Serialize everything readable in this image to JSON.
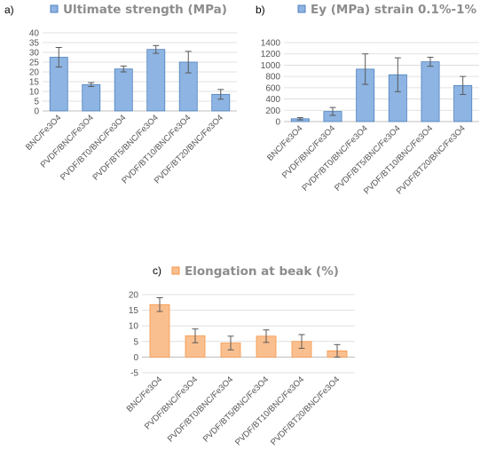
{
  "chart_data": [
    {
      "panel_label": "a)",
      "type": "bar",
      "title": "Ultimate strength (MPa)",
      "legend_position": "top",
      "color_fill": "#8db4e2",
      "color_stroke": "#4f81bd",
      "categories": [
        "BNC/Fe3O4",
        "PVDF/BNC/Fe3O4",
        "PVDF/BT0/BNC/Fe3O4",
        "PVDF/BT5/BNC/Fe3O4",
        "PVDF/BT10/BNC/Fe3O4",
        "PVDF/BT20/BNC/Fe3O4"
      ],
      "values": [
        27.5,
        13.5,
        21.5,
        31.5,
        25,
        8.5
      ],
      "errors": [
        5,
        1,
        1.5,
        2,
        5.5,
        2.5
      ],
      "ylim": [
        0,
        40
      ],
      "yticks": [
        "0",
        "5",
        "10",
        "15",
        "20",
        "25",
        "30",
        "35",
        "40"
      ],
      "grid": true
    },
    {
      "panel_label": "b)",
      "type": "bar",
      "title": "Ey (MPa) strain 0.1%-1%",
      "legend_position": "top",
      "color_fill": "#8db4e2",
      "color_stroke": "#4f81bd",
      "categories": [
        "BNC/Fe3O4",
        "PVDF/BNC/Fe3O4",
        "PVDF/BT0/BNC/Fe3O4",
        "PVDF/BT5/BNC/Fe3O4",
        "PVDF/BT10/BNC/Fe3O4",
        "PVDF/BT20/BNC/Fe3O4"
      ],
      "values": [
        50,
        180,
        930,
        830,
        1060,
        640
      ],
      "errors": [
        20,
        70,
        270,
        300,
        80,
        160
      ],
      "ylim": [
        0,
        1400
      ],
      "yticks": [
        "0",
        "200",
        "400",
        "600",
        "800",
        "1000",
        "1200",
        "1400"
      ],
      "grid": true
    },
    {
      "panel_label": "c)",
      "type": "bar",
      "title": "Elongation at beak (%)",
      "legend_position": "top",
      "color_fill": "#fabf8f",
      "color_stroke": "#f79646",
      "categories": [
        "BNC/Fe3O4",
        "PVDF/BNC/Fe3O4",
        "PVDF/BT0/BNC/Fe3O4",
        "PVDF/BT5/BNC/Fe3O4",
        "PVDF/BT10/BNC/Fe3O4",
        "PVDF/BT20/BNC/Fe3O4"
      ],
      "values": [
        16.8,
        6.8,
        4.5,
        6.7,
        5,
        2
      ],
      "errors": [
        2.2,
        2.2,
        2.2,
        2,
        2.2,
        2
      ],
      "ylim": [
        -5,
        20
      ],
      "yticks": [
        "-5",
        "0",
        "5",
        "10",
        "15",
        "20"
      ],
      "grid": true
    }
  ]
}
